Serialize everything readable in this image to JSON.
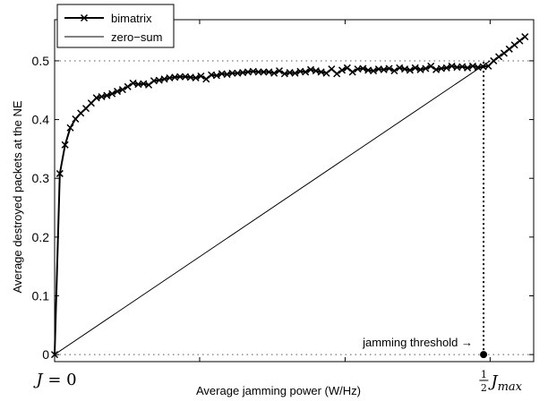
{
  "chart_data": {
    "type": "line",
    "xlabel": "Average jamming power (W/Hz)",
    "ylabel": "Average destroyed packets at the NE",
    "xlim": [
      0,
      1.1
    ],
    "ylim": [
      -0.012,
      0.57
    ],
    "grid": false,
    "legend_position": "top-left",
    "yticks": [
      0,
      0.1,
      0.2,
      0.3,
      0.4,
      0.5
    ],
    "ytick_labels": [
      "0",
      "0.1",
      "0.2",
      "0.3",
      "0.4",
      "0.5"
    ],
    "xticks": [
      0,
      0.333,
      0.667,
      1.0
    ],
    "xtick_labels": {
      "start": {
        "base": "J",
        "rest": " = 0"
      },
      "end": {
        "num": "1",
        "den": "2",
        "base": "J",
        "sub": "max"
      }
    },
    "series": [
      {
        "name": "bimatrix",
        "marker": "x",
        "color": "#000000",
        "x": [
          0,
          0.012,
          0.024,
          0.036,
          0.048,
          0.06,
          0.072,
          0.084,
          0.096,
          0.108,
          0.12,
          0.132,
          0.144,
          0.156,
          0.168,
          0.18,
          0.192,
          0.204,
          0.216,
          0.228,
          0.24,
          0.252,
          0.264,
          0.276,
          0.288,
          0.3,
          0.312,
          0.324,
          0.336,
          0.348,
          0.36,
          0.372,
          0.384,
          0.396,
          0.408,
          0.42,
          0.432,
          0.444,
          0.456,
          0.468,
          0.48,
          0.492,
          0.504,
          0.516,
          0.528,
          0.54,
          0.552,
          0.564,
          0.576,
          0.588,
          0.6,
          0.612,
          0.624,
          0.636,
          0.648,
          0.66,
          0.672,
          0.684,
          0.696,
          0.708,
          0.72,
          0.732,
          0.744,
          0.756,
          0.768,
          0.78,
          0.792,
          0.804,
          0.816,
          0.828,
          0.84,
          0.852,
          0.864,
          0.876,
          0.888,
          0.9,
          0.912,
          0.924,
          0.936,
          0.948,
          0.96,
          0.972,
          0.984,
          0.996,
          1.008,
          1.02,
          1.032,
          1.044,
          1.056,
          1.068,
          1.08
        ],
        "values": [
          0,
          0.308,
          0.357,
          0.386,
          0.401,
          0.411,
          0.419,
          0.428,
          0.437,
          0.439,
          0.441,
          0.444,
          0.448,
          0.451,
          0.456,
          0.462,
          0.46,
          0.461,
          0.459,
          0.466,
          0.467,
          0.469,
          0.471,
          0.472,
          0.473,
          0.473,
          0.472,
          0.471,
          0.474,
          0.469,
          0.476,
          0.475,
          0.478,
          0.477,
          0.479,
          0.479,
          0.48,
          0.481,
          0.482,
          0.481,
          0.481,
          0.481,
          0.479,
          0.483,
          0.478,
          0.48,
          0.479,
          0.482,
          0.481,
          0.485,
          0.483,
          0.481,
          0.479,
          0.486,
          0.478,
          0.484,
          0.488,
          0.481,
          0.486,
          0.487,
          0.484,
          0.483,
          0.486,
          0.485,
          0.487,
          0.483,
          0.488,
          0.486,
          0.484,
          0.488,
          0.485,
          0.487,
          0.491,
          0.485,
          0.487,
          0.488,
          0.491,
          0.489,
          0.49,
          0.488,
          0.491,
          0.489,
          0.49,
          0.491,
          0.5,
          0.507,
          0.513,
          0.52,
          0.527,
          0.534,
          0.541
        ]
      },
      {
        "name": "zero−sum",
        "marker": "none",
        "color": "#000000",
        "x": [
          0,
          1.0,
          1.0
        ],
        "values": [
          0,
          0.5,
          0.5
        ]
      }
    ],
    "reference_lines": {
      "horizontal_dotted": [
        0,
        0.5
      ],
      "vertical_dotted_x": 0.985
    },
    "threshold_point": {
      "x": 0.985,
      "y": 0
    },
    "annotations": [
      {
        "text": "jamming threshold →"
      }
    ]
  }
}
